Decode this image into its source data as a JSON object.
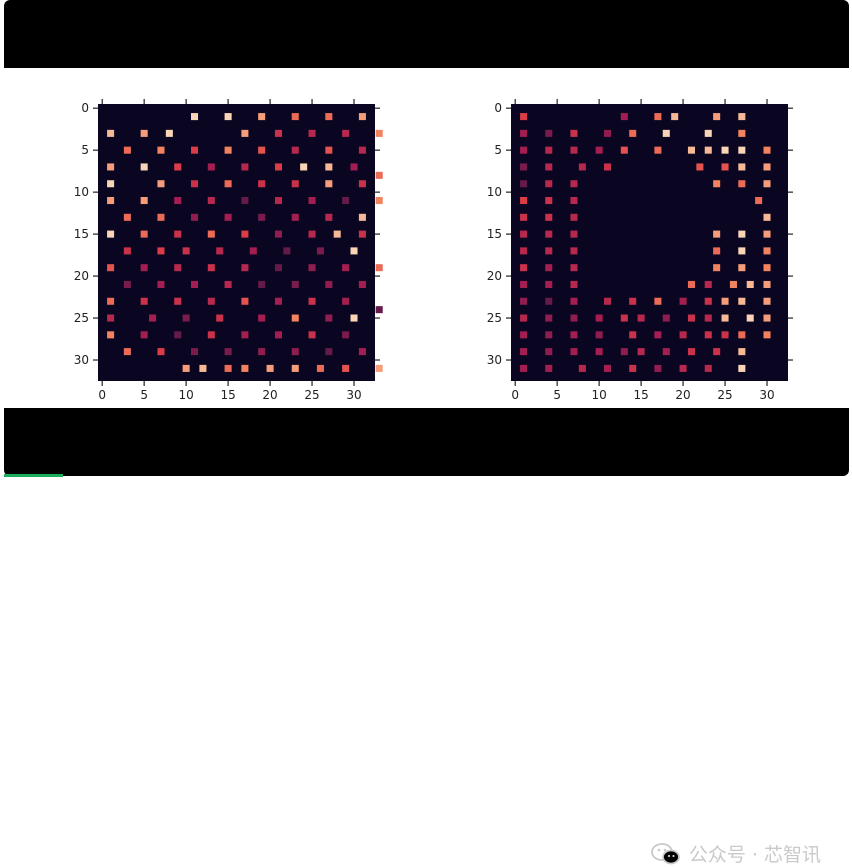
{
  "watermark": {
    "text": "公众号 · 芯智讯",
    "icon": "wechat-icon"
  },
  "colors": {
    "background": "#0a0520",
    "frame_bar": "#000000",
    "progress": "#1aad5a"
  },
  "player": {
    "progress": 0.07
  },
  "chart_data": [
    {
      "type": "heatmap",
      "grid_size": [
        33,
        33
      ],
      "xticks": [
        0,
        5,
        10,
        15,
        20,
        25,
        30
      ],
      "yticks": [
        0,
        5,
        10,
        15,
        20,
        25,
        30
      ],
      "colormap": "rocket",
      "cells": [
        [
          11,
          1,
          0.95
        ],
        [
          15,
          1,
          0.95
        ],
        [
          19,
          1,
          0.85
        ],
        [
          23,
          1,
          0.75
        ],
        [
          27,
          1,
          0.75
        ],
        [
          31,
          1,
          0.85
        ],
        [
          1,
          3,
          0.9
        ],
        [
          5,
          3,
          0.85
        ],
        [
          8,
          3,
          0.95
        ],
        [
          17,
          3,
          0.85
        ],
        [
          21,
          3,
          0.6
        ],
        [
          25,
          3,
          0.55
        ],
        [
          29,
          3,
          0.55
        ],
        [
          33,
          3,
          0.8
        ],
        [
          3,
          5,
          0.75
        ],
        [
          7,
          5,
          0.8
        ],
        [
          11,
          5,
          0.65
        ],
        [
          15,
          5,
          0.8
        ],
        [
          19,
          5,
          0.7
        ],
        [
          23,
          5,
          0.55
        ],
        [
          27,
          5,
          0.7
        ],
        [
          31,
          5,
          0.55
        ],
        [
          1,
          7,
          0.85
        ],
        [
          5,
          7,
          0.95
        ],
        [
          9,
          7,
          0.65
        ],
        [
          13,
          7,
          0.5
        ],
        [
          17,
          7,
          0.55
        ],
        [
          21,
          7,
          0.65
        ],
        [
          24,
          7,
          0.95
        ],
        [
          27,
          7,
          0.9
        ],
        [
          30,
          7,
          0.5
        ],
        [
          33,
          8,
          0.75
        ],
        [
          1,
          9,
          0.95
        ],
        [
          7,
          9,
          0.85
        ],
        [
          11,
          9,
          0.6
        ],
        [
          15,
          9,
          0.75
        ],
        [
          19,
          9,
          0.6
        ],
        [
          23,
          9,
          0.6
        ],
        [
          27,
          9,
          0.85
        ],
        [
          31,
          9,
          0.6
        ],
        [
          1,
          11,
          0.85
        ],
        [
          5,
          11,
          0.85
        ],
        [
          9,
          11,
          0.5
        ],
        [
          13,
          11,
          0.55
        ],
        [
          17,
          11,
          0.35
        ],
        [
          21,
          11,
          0.55
        ],
        [
          25,
          11,
          0.5
        ],
        [
          29,
          11,
          0.35
        ],
        [
          33,
          11,
          0.8
        ],
        [
          3,
          13,
          0.75
        ],
        [
          7,
          13,
          0.75
        ],
        [
          11,
          13,
          0.45
        ],
        [
          15,
          13,
          0.5
        ],
        [
          19,
          13,
          0.4
        ],
        [
          23,
          13,
          0.5
        ],
        [
          27,
          13,
          0.55
        ],
        [
          31,
          13,
          0.9
        ],
        [
          1,
          15,
          0.95
        ],
        [
          5,
          15,
          0.75
        ],
        [
          9,
          15,
          0.6
        ],
        [
          13,
          15,
          0.75
        ],
        [
          17,
          15,
          0.65
        ],
        [
          21,
          15,
          0.45
        ],
        [
          25,
          15,
          0.55
        ],
        [
          28,
          15,
          0.9
        ],
        [
          31,
          15,
          0.6
        ],
        [
          3,
          17,
          0.6
        ],
        [
          7,
          17,
          0.65
        ],
        [
          10,
          17,
          0.6
        ],
        [
          14,
          17,
          0.55
        ],
        [
          18,
          17,
          0.5
        ],
        [
          22,
          17,
          0.35
        ],
        [
          26,
          17,
          0.4
        ],
        [
          30,
          17,
          0.95
        ],
        [
          1,
          19,
          0.7
        ],
        [
          5,
          19,
          0.5
        ],
        [
          9,
          19,
          0.55
        ],
        [
          13,
          19,
          0.6
        ],
        [
          17,
          19,
          0.55
        ],
        [
          21,
          19,
          0.35
        ],
        [
          25,
          19,
          0.45
        ],
        [
          29,
          19,
          0.5
        ],
        [
          33,
          19,
          0.75
        ],
        [
          3,
          21,
          0.4
        ],
        [
          7,
          21,
          0.5
        ],
        [
          11,
          21,
          0.5
        ],
        [
          15,
          21,
          0.55
        ],
        [
          19,
          21,
          0.35
        ],
        [
          23,
          21,
          0.4
        ],
        [
          27,
          21,
          0.45
        ],
        [
          31,
          21,
          0.5
        ],
        [
          1,
          23,
          0.75
        ],
        [
          5,
          23,
          0.6
        ],
        [
          9,
          23,
          0.6
        ],
        [
          13,
          23,
          0.55
        ],
        [
          17,
          23,
          0.7
        ],
        [
          21,
          23,
          0.5
        ],
        [
          25,
          23,
          0.6
        ],
        [
          29,
          23,
          0.5
        ],
        [
          33,
          24,
          0.35
        ],
        [
          1,
          25,
          0.55
        ],
        [
          6,
          25,
          0.5
        ],
        [
          10,
          25,
          0.4
        ],
        [
          14,
          25,
          0.6
        ],
        [
          19,
          25,
          0.5
        ],
        [
          23,
          25,
          0.8
        ],
        [
          27,
          25,
          0.45
        ],
        [
          30,
          25,
          0.95
        ],
        [
          1,
          27,
          0.8
        ],
        [
          5,
          27,
          0.5
        ],
        [
          9,
          27,
          0.35
        ],
        [
          13,
          27,
          0.6
        ],
        [
          17,
          27,
          0.5
        ],
        [
          21,
          27,
          0.5
        ],
        [
          25,
          27,
          0.6
        ],
        [
          29,
          27,
          0.4
        ],
        [
          3,
          29,
          0.75
        ],
        [
          7,
          29,
          0.65
        ],
        [
          11,
          29,
          0.4
        ],
        [
          15,
          29,
          0.4
        ],
        [
          19,
          29,
          0.45
        ],
        [
          23,
          29,
          0.45
        ],
        [
          27,
          29,
          0.35
        ],
        [
          31,
          29,
          0.5
        ],
        [
          10,
          31,
          0.85
        ],
        [
          12,
          31,
          0.9
        ],
        [
          15,
          31,
          0.75
        ],
        [
          17,
          31,
          0.8
        ],
        [
          20,
          31,
          0.85
        ],
        [
          23,
          31,
          0.85
        ],
        [
          26,
          31,
          0.75
        ],
        [
          29,
          31,
          0.7
        ],
        [
          33,
          31,
          0.85
        ]
      ]
    },
    {
      "type": "heatmap",
      "grid_size": [
        33,
        33
      ],
      "xticks": [
        0,
        5,
        10,
        15,
        20,
        25,
        30
      ],
      "yticks": [
        0,
        5,
        10,
        15,
        20,
        25,
        30
      ],
      "colormap": "rocket",
      "cells": [
        [
          1,
          1,
          0.65
        ],
        [
          13,
          1,
          0.5
        ],
        [
          17,
          1,
          0.75
        ],
        [
          19,
          1,
          0.9
        ],
        [
          24,
          1,
          0.85
        ],
        [
          27,
          1,
          0.9
        ],
        [
          1,
          3,
          0.5
        ],
        [
          4,
          3,
          0.4
        ],
        [
          7,
          3,
          0.6
        ],
        [
          11,
          3,
          0.45
        ],
        [
          14,
          3,
          0.75
        ],
        [
          18,
          3,
          0.95
        ],
        [
          23,
          3,
          0.95
        ],
        [
          27,
          3,
          0.8
        ],
        [
          1,
          5,
          0.5
        ],
        [
          4,
          5,
          0.55
        ],
        [
          7,
          5,
          0.55
        ],
        [
          10,
          5,
          0.5
        ],
        [
          13,
          5,
          0.7
        ],
        [
          17,
          5,
          0.75
        ],
        [
          21,
          5,
          0.9
        ],
        [
          23,
          5,
          0.9
        ],
        [
          25,
          5,
          0.95
        ],
        [
          27,
          5,
          0.95
        ],
        [
          30,
          5,
          0.8
        ],
        [
          1,
          7,
          0.4
        ],
        [
          4,
          7,
          0.55
        ],
        [
          8,
          7,
          0.55
        ],
        [
          11,
          7,
          0.6
        ],
        [
          22,
          7,
          0.7
        ],
        [
          25,
          7,
          0.7
        ],
        [
          27,
          7,
          0.9
        ],
        [
          30,
          7,
          0.85
        ],
        [
          1,
          9,
          0.35
        ],
        [
          4,
          9,
          0.55
        ],
        [
          7,
          9,
          0.55
        ],
        [
          24,
          9,
          0.8
        ],
        [
          27,
          9,
          0.75
        ],
        [
          30,
          9,
          0.85
        ],
        [
          1,
          11,
          0.65
        ],
        [
          4,
          11,
          0.6
        ],
        [
          7,
          11,
          0.55
        ],
        [
          29,
          11,
          0.75
        ],
        [
          1,
          13,
          0.6
        ],
        [
          4,
          13,
          0.6
        ],
        [
          7,
          13,
          0.55
        ],
        [
          30,
          13,
          0.9
        ],
        [
          1,
          15,
          0.55
        ],
        [
          4,
          15,
          0.55
        ],
        [
          7,
          15,
          0.55
        ],
        [
          24,
          15,
          0.85
        ],
        [
          27,
          15,
          0.95
        ],
        [
          30,
          15,
          0.85
        ],
        [
          1,
          17,
          0.55
        ],
        [
          4,
          17,
          0.55
        ],
        [
          7,
          17,
          0.55
        ],
        [
          24,
          17,
          0.75
        ],
        [
          27,
          17,
          0.95
        ],
        [
          30,
          17,
          0.8
        ],
        [
          1,
          19,
          0.6
        ],
        [
          4,
          19,
          0.5
        ],
        [
          7,
          19,
          0.55
        ],
        [
          24,
          19,
          0.8
        ],
        [
          27,
          19,
          0.85
        ],
        [
          30,
          19,
          0.8
        ],
        [
          1,
          21,
          0.5
        ],
        [
          4,
          21,
          0.5
        ],
        [
          7,
          21,
          0.55
        ],
        [
          21,
          21,
          0.75
        ],
        [
          23,
          21,
          0.55
        ],
        [
          26,
          21,
          0.8
        ],
        [
          28,
          21,
          0.9
        ],
        [
          30,
          21,
          0.85
        ],
        [
          1,
          23,
          0.45
        ],
        [
          4,
          23,
          0.35
        ],
        [
          7,
          23,
          0.5
        ],
        [
          11,
          23,
          0.55
        ],
        [
          14,
          23,
          0.6
        ],
        [
          17,
          23,
          0.75
        ],
        [
          20,
          23,
          0.5
        ],
        [
          23,
          23,
          0.6
        ],
        [
          25,
          23,
          0.85
        ],
        [
          27,
          23,
          0.9
        ],
        [
          30,
          23,
          0.85
        ],
        [
          1,
          25,
          0.55
        ],
        [
          4,
          25,
          0.45
        ],
        [
          7,
          25,
          0.45
        ],
        [
          10,
          25,
          0.5
        ],
        [
          13,
          25,
          0.6
        ],
        [
          15,
          25,
          0.55
        ],
        [
          18,
          25,
          0.45
        ],
        [
          21,
          25,
          0.6
        ],
        [
          23,
          25,
          0.55
        ],
        [
          25,
          25,
          0.9
        ],
        [
          28,
          25,
          0.95
        ],
        [
          30,
          25,
          0.85
        ],
        [
          1,
          27,
          0.5
        ],
        [
          4,
          27,
          0.45
        ],
        [
          7,
          27,
          0.5
        ],
        [
          10,
          27,
          0.45
        ],
        [
          14,
          27,
          0.6
        ],
        [
          17,
          27,
          0.5
        ],
        [
          20,
          27,
          0.55
        ],
        [
          23,
          27,
          0.6
        ],
        [
          25,
          27,
          0.6
        ],
        [
          27,
          27,
          0.75
        ],
        [
          30,
          27,
          0.8
        ],
        [
          1,
          29,
          0.5
        ],
        [
          4,
          29,
          0.45
        ],
        [
          7,
          29,
          0.5
        ],
        [
          10,
          29,
          0.5
        ],
        [
          13,
          29,
          0.45
        ],
        [
          15,
          29,
          0.55
        ],
        [
          18,
          29,
          0.5
        ],
        [
          21,
          29,
          0.6
        ],
        [
          24,
          29,
          0.6
        ],
        [
          27,
          29,
          0.9
        ],
        [
          1,
          31,
          0.5
        ],
        [
          4,
          31,
          0.5
        ],
        [
          8,
          31,
          0.55
        ],
        [
          11,
          31,
          0.5
        ],
        [
          14,
          31,
          0.6
        ],
        [
          17,
          31,
          0.45
        ],
        [
          20,
          31,
          0.55
        ],
        [
          23,
          31,
          0.55
        ],
        [
          27,
          31,
          0.95
        ]
      ]
    }
  ]
}
